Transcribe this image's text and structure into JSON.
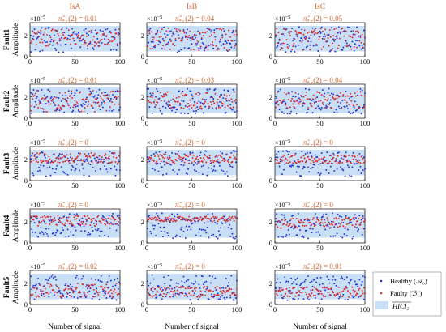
{
  "chart_data": {
    "type": "scatter",
    "columns": [
      "IsA",
      "IsB",
      "IsC"
    ],
    "rows": [
      "Fault1",
      "Fault2",
      "Fault3",
      "Fault4",
      "Fault5"
    ],
    "ylabel": "Amplitude",
    "xlabel": "Number of signal",
    "y_exponent": "×10",
    "y_exponent_power": "−5",
    "xlim": [
      0,
      100
    ],
    "ylim": [
      0,
      3.2
    ],
    "xticks": [
      "0",
      "50",
      "100"
    ],
    "yticks": [
      "0",
      "2"
    ],
    "annotation_prefix": "π̂",
    "annotation_suffix": "(2) =",
    "annotations": [
      [
        "0.01",
        "0.04",
        "0.05"
      ],
      [
        "0.01",
        "0.03",
        "0.04"
      ],
      [
        "0",
        "0",
        "0"
      ],
      [
        "0",
        "0",
        "0"
      ],
      [
        "0.02",
        "0",
        "0.01"
      ]
    ],
    "hici_band": [
      0.5,
      2.9
    ],
    "healthy_range": [
      0.4,
      2.8
    ],
    "faulty_ranges": [
      [
        [
          1.0,
          2.6
        ],
        [
          0.6,
          2.7
        ],
        [
          0.6,
          2.7
        ]
      ],
      [
        [
          0.6,
          2.6
        ],
        [
          0.9,
          2.5
        ],
        [
          0.9,
          2.5
        ]
      ],
      [
        [
          1.6,
          2.6
        ],
        [
          1.6,
          2.5
        ],
        [
          1.6,
          2.4
        ]
      ],
      [
        [
          1.6,
          2.6
        ],
        [
          2.0,
          2.5
        ],
        [
          1.4,
          2.4
        ]
      ],
      [
        [
          0.7,
          2.0
        ],
        [
          0.7,
          1.7
        ],
        [
          0.7,
          1.7
        ]
      ]
    ],
    "points_per_series": 100,
    "legend": {
      "healthy": "Healthy (𝒜₀)",
      "faulty": "Faulty (ℬ₁)",
      "band": "HICI₂",
      "placement": "bottom-right"
    },
    "colors": {
      "healthy": "#1f2fd8",
      "faulty": "#d62a2a",
      "band": "#c9dff5",
      "title": "#d4622a"
    }
  }
}
